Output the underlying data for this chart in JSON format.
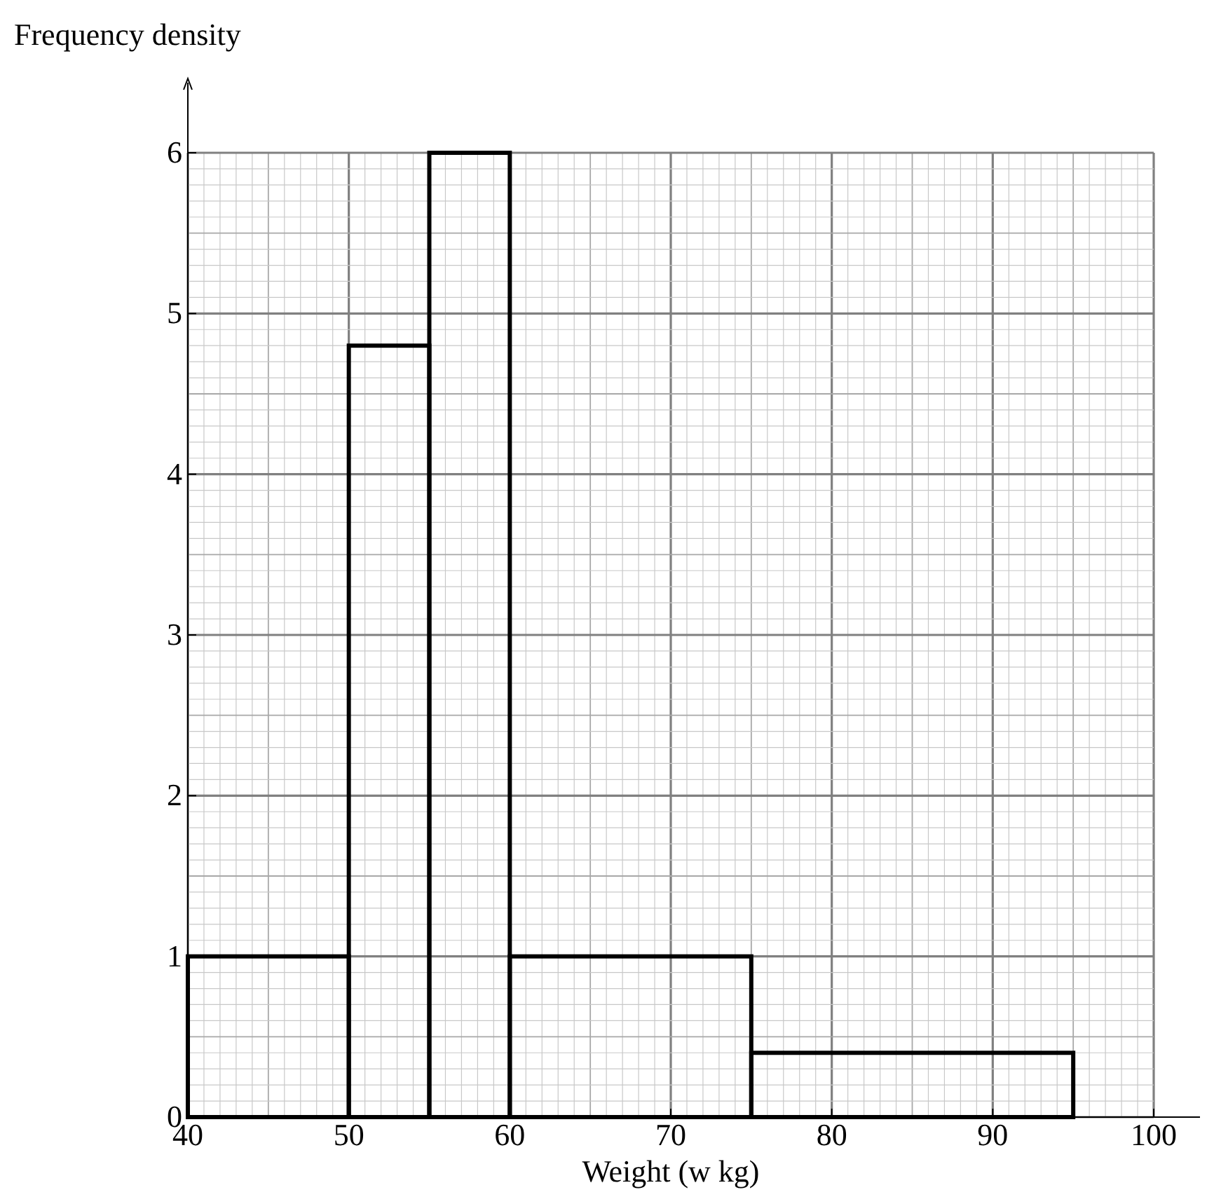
{
  "chart_data": {
    "type": "histogram",
    "xlabel": "Weight (w kg)",
    "ylabel": "Frequency density",
    "bins": [
      40,
      50,
      55,
      60,
      75,
      95
    ],
    "values": [
      1,
      4.8,
      6,
      1,
      0.4
    ],
    "color": "#000000",
    "xlim": [
      40,
      100
    ],
    "xticks": [
      40,
      50,
      60,
      70,
      80,
      90,
      100
    ],
    "ylim": [
      0,
      6
    ],
    "yticks": [
      0,
      1,
      2,
      3,
      4,
      5,
      6
    ],
    "grid": true
  }
}
